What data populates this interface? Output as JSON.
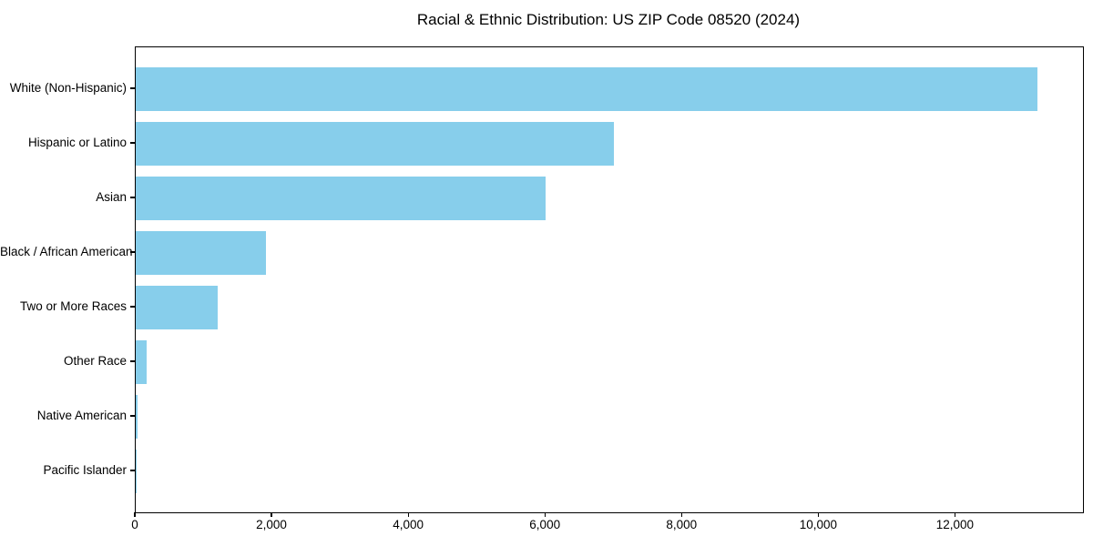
{
  "chart_data": {
    "type": "bar",
    "orientation": "horizontal",
    "title": "Racial & Ethnic Distribution: US ZIP Code 08520 (2024)",
    "categories": [
      "White (Non-Hispanic)",
      "Hispanic or Latino",
      "Asian",
      "Black / African American",
      "Two or More Races",
      "Other Race",
      "Native American",
      "Pacific Islander"
    ],
    "values": [
      13200,
      7000,
      6000,
      1900,
      1200,
      160,
      20,
      5
    ],
    "xlabel": "",
    "ylabel": "",
    "xlim": [
      0,
      13860
    ],
    "x_ticks": [
      0,
      2000,
      4000,
      6000,
      8000,
      10000,
      12000
    ],
    "x_tick_labels": [
      "0",
      "2,000",
      "4,000",
      "6,000",
      "8,000",
      "10,000",
      "12,000"
    ],
    "bar_color": "#87CEEB",
    "axis_color": "#000000",
    "background_color": "#ffffff",
    "grid": false,
    "legend": null
  }
}
